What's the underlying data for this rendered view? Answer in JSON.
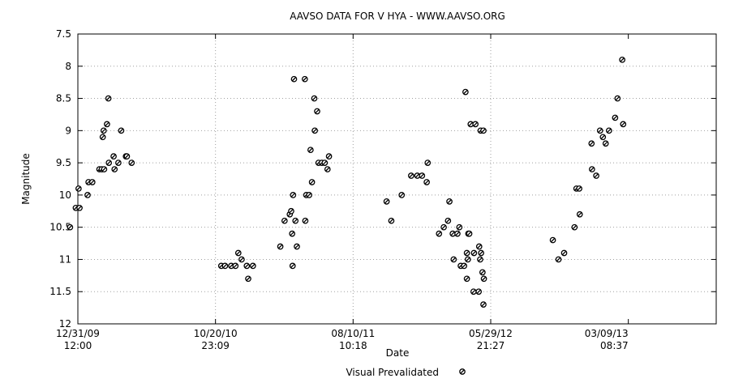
{
  "chart_data": {
    "type": "scatter",
    "title": "AAVSO DATA FOR V HYA - WWW.AAVSO.ORG",
    "xlabel": "Date",
    "ylabel": "Magnitude",
    "y_inverted": true,
    "ylim": [
      7.5,
      12
    ],
    "y_ticks": [
      "7.5",
      "8",
      "8.5",
      "9",
      "9.5",
      "10",
      "10.5",
      "11",
      "11.5",
      "12"
    ],
    "x_unit": "JD - 2455000",
    "xlim": [
      196.0,
      1561.9
    ],
    "x_ticks": [
      {
        "value": 196.0,
        "date": "12/31/09",
        "time": "12:00"
      },
      {
        "value": 490.46,
        "date": "10/20/10",
        "time": "23:09"
      },
      {
        "value": 784.93,
        "date": "08/10/11",
        "time": "10:18"
      },
      {
        "value": 1079.39,
        "date": "05/29/12",
        "time": "21:27"
      },
      {
        "value": 1373.86,
        "date": "03/09/13",
        "time": "08:37"
      }
    ],
    "grid": true,
    "legend": {
      "position": "bottom-center"
    },
    "series": [
      {
        "name": "Visual Prevalidated",
        "points": [
          {
            "x": 179.3,
            "y": 10.5
          },
          {
            "x": 191.5,
            "y": 10.2
          },
          {
            "x": 197.5,
            "y": 9.9
          },
          {
            "x": 199.6,
            "y": 10.2
          },
          {
            "x": 216.8,
            "y": 10.0
          },
          {
            "x": 218.8,
            "y": 9.8
          },
          {
            "x": 226.9,
            "y": 9.8
          },
          {
            "x": 242.1,
            "y": 9.6
          },
          {
            "x": 247.1,
            "y": 9.6
          },
          {
            "x": 249.2,
            "y": 9.1
          },
          {
            "x": 251.2,
            "y": 9.0
          },
          {
            "x": 252.2,
            "y": 9.6
          },
          {
            "x": 258.3,
            "y": 8.9
          },
          {
            "x": 261.3,
            "y": 8.5
          },
          {
            "x": 262.3,
            "y": 9.5
          },
          {
            "x": 272.5,
            "y": 9.4
          },
          {
            "x": 274.5,
            "y": 9.6
          },
          {
            "x": 282.6,
            "y": 9.5
          },
          {
            "x": 288.7,
            "y": 9.0
          },
          {
            "x": 298.8,
            "y": 9.4
          },
          {
            "x": 300.9,
            "y": 9.4
          },
          {
            "x": 311.0,
            "y": 9.5
          },
          {
            "x": 502.8,
            "y": 11.1
          },
          {
            "x": 510.9,
            "y": 11.1
          },
          {
            "x": 524.1,
            "y": 11.1
          },
          {
            "x": 533.2,
            "y": 11.1
          },
          {
            "x": 539.3,
            "y": 10.9
          },
          {
            "x": 546.4,
            "y": 11.0
          },
          {
            "x": 557.5,
            "y": 11.1
          },
          {
            "x": 560.5,
            "y": 11.3
          },
          {
            "x": 570.6,
            "y": 11.1
          },
          {
            "x": 629.2,
            "y": 10.8
          },
          {
            "x": 638.3,
            "y": 10.4
          },
          {
            "x": 649.4,
            "y": 10.3
          },
          {
            "x": 652.4,
            "y": 10.25
          },
          {
            "x": 654.5,
            "y": 10.6
          },
          {
            "x": 655.5,
            "y": 11.1
          },
          {
            "x": 656.5,
            "y": 10.0
          },
          {
            "x": 658.5,
            "y": 8.2
          },
          {
            "x": 661.5,
            "y": 10.4
          },
          {
            "x": 664.6,
            "y": 10.8
          },
          {
            "x": 681.7,
            "y": 8.2
          },
          {
            "x": 682.7,
            "y": 10.4
          },
          {
            "x": 684.8,
            "y": 10.0
          },
          {
            "x": 690.8,
            "y": 10.0
          },
          {
            "x": 693.9,
            "y": 9.3
          },
          {
            "x": 696.9,
            "y": 9.8
          },
          {
            "x": 701.9,
            "y": 8.5
          },
          {
            "x": 703.0,
            "y": 9.0
          },
          {
            "x": 708.0,
            "y": 8.7
          },
          {
            "x": 711.0,
            "y": 9.5
          },
          {
            "x": 718.1,
            "y": 9.5
          },
          {
            "x": 724.2,
            "y": 9.5
          },
          {
            "x": 730.2,
            "y": 9.6
          },
          {
            "x": 733.3,
            "y": 9.4
          },
          {
            "x": 856.6,
            "y": 10.1
          },
          {
            "x": 866.7,
            "y": 10.4
          },
          {
            "x": 888.9,
            "y": 10.0
          },
          {
            "x": 909.1,
            "y": 9.7
          },
          {
            "x": 922.3,
            "y": 9.7
          },
          {
            "x": 932.4,
            "y": 9.7
          },
          {
            "x": 942.5,
            "y": 9.8
          },
          {
            "x": 944.5,
            "y": 9.5
          },
          {
            "x": 968.8,
            "y": 10.6
          },
          {
            "x": 978.9,
            "y": 10.5
          },
          {
            "x": 988.0,
            "y": 10.4
          },
          {
            "x": 991.0,
            "y": 10.1
          },
          {
            "x": 998.1,
            "y": 10.6
          },
          {
            "x": 1000.1,
            "y": 11.0
          },
          {
            "x": 1008.2,
            "y": 10.6
          },
          {
            "x": 1012.3,
            "y": 10.5
          },
          {
            "x": 1015.3,
            "y": 11.1
          },
          {
            "x": 1022.4,
            "y": 11.1
          },
          {
            "x": 1025.4,
            "y": 8.4
          },
          {
            "x": 1028.4,
            "y": 10.9
          },
          {
            "x": 1028.4,
            "y": 11.3
          },
          {
            "x": 1030.5,
            "y": 11.0
          },
          {
            "x": 1031.5,
            "y": 10.6
          },
          {
            "x": 1033.5,
            "y": 10.6
          },
          {
            "x": 1036.5,
            "y": 8.9
          },
          {
            "x": 1042.6,
            "y": 11.5
          },
          {
            "x": 1043.6,
            "y": 10.9
          },
          {
            "x": 1046.7,
            "y": 8.9
          },
          {
            "x": 1053.7,
            "y": 11.5
          },
          {
            "x": 1054.7,
            "y": 10.8
          },
          {
            "x": 1056.8,
            "y": 11.0
          },
          {
            "x": 1057.8,
            "y": 9.0
          },
          {
            "x": 1058.8,
            "y": 10.9
          },
          {
            "x": 1061.8,
            "y": 11.2
          },
          {
            "x": 1063.8,
            "y": 11.7
          },
          {
            "x": 1063.8,
            "y": 9.0
          },
          {
            "x": 1064.8,
            "y": 11.3
          },
          {
            "x": 1212.3,
            "y": 10.7
          },
          {
            "x": 1224.4,
            "y": 11.0
          },
          {
            "x": 1236.5,
            "y": 10.9
          },
          {
            "x": 1258.7,
            "y": 10.5
          },
          {
            "x": 1262.8,
            "y": 9.9
          },
          {
            "x": 1268.8,
            "y": 9.9
          },
          {
            "x": 1269.9,
            "y": 10.3
          },
          {
            "x": 1295.1,
            "y": 9.2
          },
          {
            "x": 1296.1,
            "y": 9.6
          },
          {
            "x": 1305.2,
            "y": 9.7
          },
          {
            "x": 1313.3,
            "y": 9.0
          },
          {
            "x": 1319.4,
            "y": 9.1
          },
          {
            "x": 1325.4,
            "y": 9.2
          },
          {
            "x": 1332.5,
            "y": 9.0
          },
          {
            "x": 1345.6,
            "y": 8.8
          },
          {
            "x": 1350.7,
            "y": 8.5
          },
          {
            "x": 1360.8,
            "y": 7.9
          },
          {
            "x": 1362.8,
            "y": 8.9
          }
        ]
      }
    ]
  }
}
